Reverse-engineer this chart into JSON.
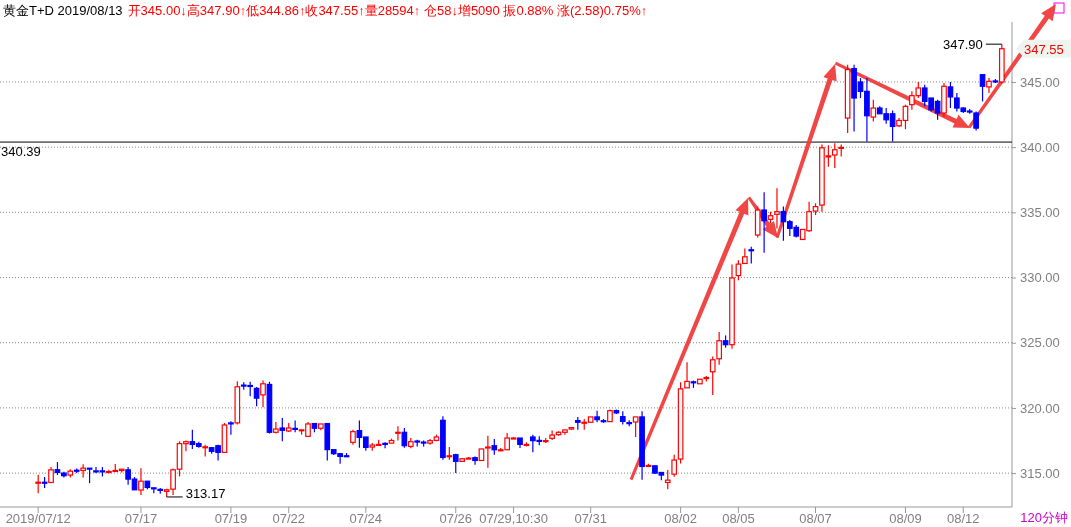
{
  "chart_data": {
    "type": "candlestick",
    "title": "黄金T+D 2019/08/13",
    "subtitle": "开345.00↓高347.90↑低344.86↑收347.55↑量28594↑ 仓58↓增5090 振0.88% 涨(2.58)0.75%↑",
    "categories": [
      "2019/07/12",
      null,
      null,
      null,
      null,
      null,
      null,
      null,
      null,
      null,
      null,
      null,
      null,
      null,
      null,
      null,
      "07/17",
      null,
      null,
      null,
      null,
      null,
      null,
      null,
      null,
      null,
      null,
      null,
      null,
      null,
      "07/19",
      null,
      null,
      null,
      null,
      null,
      null,
      null,
      null,
      "07/22",
      null,
      null,
      null,
      null,
      null,
      null,
      null,
      null,
      null,
      null,
      null,
      "07/24",
      null,
      null,
      null,
      null,
      null,
      null,
      null,
      null,
      null,
      null,
      null,
      null,
      null,
      "07/26",
      null,
      null,
      null,
      null,
      null,
      null,
      null,
      null,
      "07/29,10:30",
      null,
      null,
      null,
      null,
      null,
      null,
      null,
      null,
      null,
      null,
      null,
      "07/31",
      null,
      null,
      null,
      null,
      null,
      null,
      null,
      null,
      null,
      null,
      null,
      null,
      null,
      "08/02",
      null,
      null,
      null,
      null,
      null,
      null,
      null,
      null,
      "08/05",
      null,
      null,
      null,
      null,
      null,
      null,
      null,
      null,
      null,
      null,
      null,
      "08/07",
      null,
      null,
      null,
      null,
      null,
      null,
      null,
      null,
      null,
      null,
      null,
      null,
      null,
      "08/09",
      null,
      null,
      null,
      null,
      null,
      null,
      null,
      null,
      "08/12",
      null,
      null,
      null,
      null,
      null,
      null
    ],
    "ohlc": [
      [
        314.28,
        314.87,
        313.46,
        314.3
      ],
      [
        314.3,
        314.7,
        313.85,
        314.25
      ],
      [
        314.28,
        315.46,
        314.28,
        315.25
      ],
      [
        315.26,
        315.85,
        314.85,
        315.05
      ],
      [
        315.0,
        315.1,
        314.67,
        314.8
      ],
      [
        314.85,
        315.3,
        314.67,
        315.15
      ],
      [
        315.22,
        315.36,
        315.0,
        315.18
      ],
      [
        315.2,
        315.67,
        314.67,
        315.38
      ],
      [
        315.38,
        315.38,
        314.23,
        315.33
      ],
      [
        315.17,
        315.46,
        315.0,
        315.15
      ],
      [
        315.17,
        315.46,
        314.74,
        315.1
      ],
      [
        315.08,
        315.26,
        315.0,
        315.12
      ],
      [
        315.18,
        315.7,
        315.15,
        315.2
      ],
      [
        315.2,
        315.3,
        315.05,
        315.3
      ],
      [
        315.25,
        315.46,
        314.1,
        314.54
      ],
      [
        314.54,
        314.7,
        313.72,
        313.72
      ],
      [
        313.7,
        315.38,
        313.33,
        314.38
      ],
      [
        314.38,
        314.38,
        313.77,
        313.9
      ],
      [
        313.87,
        313.87,
        313.46,
        313.84
      ],
      [
        313.75,
        313.85,
        313.41,
        313.72
      ],
      [
        313.6,
        313.8,
        313.17,
        313.72
      ],
      [
        313.77,
        315.36,
        313.33,
        315.25
      ],
      [
        315.3,
        317.44,
        314.74,
        317.26
      ],
      [
        317.26,
        317.5,
        316.67,
        317.41
      ],
      [
        317.41,
        318.33,
        316.85,
        317.2
      ],
      [
        317.26,
        317.41,
        316.95,
        317.05
      ],
      [
        317.0,
        317.18,
        316.28,
        317.02
      ],
      [
        316.95,
        317.0,
        316.49,
        316.67
      ],
      [
        317.1,
        317.18,
        315.97,
        316.59
      ],
      [
        316.59,
        318.85,
        316.54,
        318.69
      ],
      [
        318.85,
        318.97,
        317.95,
        318.82
      ],
      [
        318.85,
        322.05,
        318.72,
        321.62
      ],
      [
        321.75,
        321.97,
        321.4,
        321.72
      ],
      [
        321.72,
        322.0,
        320.9,
        321.7
      ],
      [
        321.5,
        321.6,
        320.13,
        320.75
      ],
      [
        321.0,
        322.1,
        320.05,
        321.85
      ],
      [
        321.8,
        322.0,
        318.03,
        318.13
      ],
      [
        318.13,
        318.92,
        318.03,
        318.38
      ],
      [
        318.46,
        319.23,
        317.44,
        318.28
      ],
      [
        318.23,
        318.85,
        318.15,
        318.46
      ],
      [
        318.43,
        319.03,
        318.13,
        318.38
      ],
      [
        318.3,
        318.32,
        317.95,
        318.32
      ],
      [
        317.82,
        318.92,
        317.82,
        318.77
      ],
      [
        318.8,
        318.8,
        318.13,
        318.44
      ],
      [
        318.44,
        318.77,
        318.28,
        318.77
      ],
      [
        318.8,
        318.8,
        315.97,
        316.8
      ],
      [
        316.8,
        316.8,
        316.38,
        316.49
      ],
      [
        316.49,
        316.54,
        315.72,
        316.28
      ],
      [
        316.33,
        316.54,
        316.3,
        316.3
      ],
      [
        317.36,
        318.33,
        317.18,
        318.18
      ],
      [
        318.26,
        319.03,
        316.95,
        317.74
      ],
      [
        317.77,
        317.77,
        316.72,
        316.97
      ],
      [
        317.0,
        317.3,
        316.72,
        317.15
      ],
      [
        317.18,
        317.56,
        317.1,
        317.2
      ],
      [
        317.28,
        317.36,
        316.9,
        317.25
      ],
      [
        317.3,
        317.64,
        317.3,
        317.5
      ],
      [
        318.1,
        318.59,
        317.51,
        318.13
      ],
      [
        318.13,
        318.46,
        316.95,
        317.1
      ],
      [
        317.05,
        317.69,
        316.9,
        317.41
      ],
      [
        317.46,
        317.56,
        317.05,
        317.44
      ],
      [
        317.38,
        317.51,
        317.05,
        317.36
      ],
      [
        317.3,
        317.62,
        317.18,
        317.49
      ],
      [
        317.51,
        317.95,
        317.44,
        317.77
      ],
      [
        319.05,
        319.36,
        316.03,
        316.2
      ],
      [
        316.3,
        317.0,
        316.03,
        316.33
      ],
      [
        316.41,
        316.49,
        315.0,
        315.9
      ],
      [
        315.9,
        316.15,
        315.9,
        316.1
      ],
      [
        316.13,
        316.23,
        316.08,
        316.15
      ],
      [
        316.18,
        316.28,
        315.64,
        315.97
      ],
      [
        315.97,
        316.87,
        315.97,
        316.85
      ],
      [
        316.98,
        317.87,
        315.41,
        317.0
      ],
      [
        317.1,
        317.62,
        316.41,
        316.79
      ],
      [
        316.77,
        316.92,
        316.67,
        316.79
      ],
      [
        316.79,
        318.08,
        316.79,
        317.69
      ],
      [
        317.67,
        317.77,
        317.64,
        317.69
      ],
      [
        317.69,
        317.69,
        316.92,
        317.2
      ],
      [
        317.18,
        317.36,
        317.05,
        317.2
      ],
      [
        317.77,
        317.95,
        316.59,
        317.49
      ],
      [
        317.51,
        317.82,
        317.13,
        317.49
      ],
      [
        317.46,
        317.69,
        317.31,
        317.49
      ],
      [
        317.67,
        318.26,
        317.54,
        317.92
      ],
      [
        317.95,
        318.21,
        317.87,
        318.13
      ],
      [
        318.13,
        318.33,
        317.95,
        318.31
      ],
      [
        318.38,
        318.54,
        318.33,
        318.49
      ],
      [
        319.03,
        319.31,
        318.33,
        318.9
      ],
      [
        318.88,
        319.15,
        318.33,
        318.9
      ],
      [
        318.9,
        319.31,
        318.9,
        319.31
      ],
      [
        319.31,
        319.79,
        318.9,
        319.1
      ],
      [
        319.02,
        319.15,
        318.85,
        319.0
      ],
      [
        318.95,
        319.87,
        318.95,
        319.79
      ],
      [
        319.79,
        319.87,
        319.54,
        319.62
      ],
      [
        319.33,
        319.74,
        318.72,
        318.97
      ],
      [
        318.87,
        319.05,
        318.59,
        318.85
      ],
      [
        318.92,
        319.31,
        317.77,
        319.31
      ],
      [
        319.31,
        319.74,
        314.49,
        315.51
      ],
      [
        315.56,
        315.72,
        315.46,
        315.59
      ],
      [
        315.56,
        315.56,
        314.95,
        315.0
      ],
      [
        315.05,
        315.05,
        314.46,
        314.85
      ],
      [
        314.28,
        315.23,
        313.77,
        314.46
      ],
      [
        314.92,
        316.41,
        314.72,
        316.0
      ],
      [
        316.08,
        321.97,
        315.74,
        321.46
      ],
      [
        321.54,
        323.51,
        321.54,
        322.03
      ],
      [
        322.0,
        322.1,
        321.54,
        321.97
      ],
      [
        321.85,
        322.2,
        321.85,
        322.2
      ],
      [
        322.3,
        322.44,
        322.03,
        322.33
      ],
      [
        322.77,
        323.95,
        321.0,
        323.69
      ],
      [
        323.77,
        325.82,
        323.31,
        325.15
      ],
      [
        325.15,
        325.56,
        324.62,
        324.85
      ],
      [
        324.85,
        331.0,
        324.54,
        329.97
      ],
      [
        330.15,
        331.33,
        329.79,
        331.03
      ],
      [
        331.08,
        332.23,
        331.08,
        331.59
      ],
      [
        332.13,
        332.36,
        331.08,
        332.1
      ],
      [
        333.26,
        335.44,
        333.08,
        335.18
      ],
      [
        335.18,
        336.54,
        331.9,
        334.36
      ],
      [
        334.46,
        335.05,
        334.15,
        334.74
      ],
      [
        334.85,
        336.85,
        333.77,
        335.05
      ],
      [
        335.05,
        335.44,
        332.82,
        334.28
      ],
      [
        334.28,
        334.41,
        333.18,
        333.77
      ],
      [
        333.85,
        334.03,
        333.08,
        333.18
      ],
      [
        332.92,
        333.69,
        332.87,
        333.69
      ],
      [
        333.59,
        335.82,
        333.51,
        335.05
      ],
      [
        335.1,
        335.69,
        334.79,
        335.44
      ],
      [
        335.56,
        340.2,
        335.05,
        339.95
      ],
      [
        339.3,
        340.15,
        338.5,
        339.33
      ],
      [
        339.4,
        340.3,
        338.4,
        339.8
      ],
      [
        339.95,
        340.2,
        339.28,
        339.98
      ],
      [
        342.23,
        346.33,
        341.08,
        345.95
      ],
      [
        346.03,
        346.33,
        341.2,
        343.77
      ],
      [
        345.0,
        345.3,
        343.77,
        344.28
      ],
      [
        344.28,
        345.3,
        340.44,
        342.41
      ],
      [
        342.31,
        343.64,
        341.97,
        343.0
      ],
      [
        343.0,
        343.13,
        342.56,
        342.56
      ],
      [
        342.56,
        343.0,
        341.8,
        342.1
      ],
      [
        342.56,
        342.82,
        340.44,
        341.59
      ],
      [
        341.64,
        342.23,
        341.54,
        342.05
      ],
      [
        342.05,
        343.26,
        341.38,
        343.13
      ],
      [
        343.26,
        344.28,
        342.87,
        343.95
      ],
      [
        343.95,
        345.0,
        343.77,
        344.54
      ],
      [
        344.54,
        344.79,
        343.13,
        343.51
      ],
      [
        343.77,
        343.77,
        342.74,
        342.87
      ],
      [
        343.51,
        343.64,
        342.1,
        342.62
      ],
      [
        342.62,
        344.92,
        342.31,
        344.67
      ],
      [
        344.62,
        345.0,
        343.0,
        343.85
      ],
      [
        343.77,
        344.15,
        342.74,
        343.0
      ],
      [
        343.0,
        343.08,
        342.62,
        342.74
      ],
      [
        342.77,
        342.92,
        342.56,
        342.74
      ],
      [
        342.62,
        342.74,
        341.28,
        341.46
      ],
      [
        345.56,
        345.56,
        343.51,
        344.67
      ],
      [
        344.62,
        345.31,
        344.15,
        345.05
      ],
      [
        345.08,
        345.23,
        344.92,
        345.05
      ],
      [
        345.0,
        347.9,
        344.86,
        347.55
      ]
    ],
    "colors": [
      "#ff0000",
      "#0000ff",
      "#ff0000",
      "#0000ff",
      "#0000ff",
      "#ff0000",
      "#0000ff",
      "#ff0000",
      "#0000ff",
      "#0000ff",
      "#0000ff",
      "#ff0000",
      "#ff0000",
      "#ff0000",
      "#0000ff",
      "#0000ff",
      "#ff0000",
      "#0000ff",
      "#0000ff",
      "#0000ff",
      "#ff0000",
      "#ff0000",
      "#ff0000",
      "#ff0000",
      "#0000ff",
      "#0000ff",
      "#ff0000",
      "#0000ff",
      "#0000ff",
      "#ff0000",
      "#0000ff",
      "#ff0000",
      "#0000ff",
      "#0000ff",
      "#0000ff",
      "#ff0000",
      "#0000ff",
      "#ff0000",
      "#0000ff",
      "#ff0000",
      "#0000ff",
      "#ff0000",
      "#ff0000",
      "#0000ff",
      "#ff0000",
      "#0000ff",
      "#0000ff",
      "#0000ff",
      "#0000ff",
      "#ff0000",
      "#0000ff",
      "#0000ff",
      "#ff0000",
      "#ff0000",
      "#0000ff",
      "#ff0000",
      "#ff0000",
      "#0000ff",
      "#ff0000",
      "#0000ff",
      "#0000ff",
      "#ff0000",
      "#ff0000",
      "#0000ff",
      "#ff0000",
      "#0000ff",
      "#ff0000",
      "#ff0000",
      "#0000ff",
      "#ff0000",
      "#ff0000",
      "#0000ff",
      "#ff0000",
      "#ff0000",
      "#ff0000",
      "#0000ff",
      "#ff0000",
      "#0000ff",
      "#0000ff",
      "#ff0000",
      "#ff0000",
      "#ff0000",
      "#ff0000",
      "#ff0000",
      "#0000ff",
      "#ff0000",
      "#ff0000",
      "#0000ff",
      "#0000ff",
      "#ff0000",
      "#0000ff",
      "#0000ff",
      "#0000ff",
      "#ff0000",
      "#0000ff",
      "#ff0000",
      "#0000ff",
      "#0000ff",
      "#ff0000",
      "#ff0000",
      "#ff0000",
      "#ff0000",
      "#0000ff",
      "#ff0000",
      "#ff0000",
      "#ff0000",
      "#ff0000",
      "#0000ff",
      "#ff0000",
      "#ff0000",
      "#ff0000",
      "#0000ff",
      "#ff0000",
      "#0000ff",
      "#ff0000",
      "#ff0000",
      "#0000ff",
      "#0000ff",
      "#0000ff",
      "#ff0000",
      "#ff0000",
      "#ff0000",
      "#ff0000",
      "#ff0000",
      "#ff0000",
      "#ff0000",
      "#ff0000",
      "#0000ff",
      "#0000ff",
      "#0000ff",
      "#ff0000",
      "#0000ff",
      "#0000ff",
      "#0000ff",
      "#ff0000",
      "#ff0000",
      "#ff0000",
      "#ff0000",
      "#0000ff",
      "#0000ff",
      "#0000ff",
      "#ff0000",
      "#0000ff",
      "#0000ff",
      "#0000ff",
      "#0000ff",
      "#0000ff",
      "#0000ff",
      "#ff0000",
      "#0000ff",
      "#ff0000"
    ],
    "ylim": [
      312.4,
      349.6
    ],
    "yticks": [
      {
        "value": 315,
        "label": "315.00"
      },
      {
        "value": 320,
        "label": "320.00"
      },
      {
        "value": 325,
        "label": "325.00"
      },
      {
        "value": 330,
        "label": "330.00"
      },
      {
        "value": 335,
        "label": "335.00"
      },
      {
        "value": 340,
        "label": "340.00"
      },
      {
        "value": 345,
        "label": "345.00"
      }
    ],
    "grid": "y",
    "ref_lines": [
      {
        "axis": "y",
        "value": 340.39,
        "label": "340.39",
        "color": "#000000"
      }
    ],
    "annotations": [
      "313.17",
      "347.90",
      "347.55",
      "120分钟"
    ]
  }
}
